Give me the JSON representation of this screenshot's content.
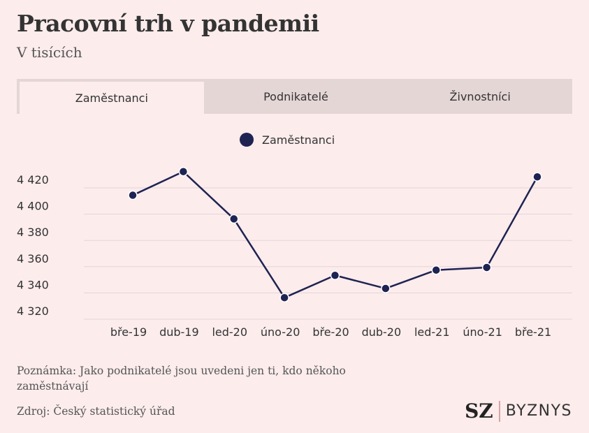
{
  "title": "Pracovní trh v pandemii",
  "subtitle": "V tisících",
  "tabs": [
    {
      "label": "Zaměstnanci",
      "active": true
    },
    {
      "label": "Podnikatelé",
      "active": false
    },
    {
      "label": "Živnostníci",
      "active": false
    }
  ],
  "note": "Poznámka: Jako podnikatelé jsou uvedeni jen ti, kdo někoho zaměstnávají",
  "source": "Zdroj: Český statistický úřad",
  "logo": {
    "sz": "SZ",
    "byznys": "BYZNYS"
  },
  "colors": {
    "series": "#1e2352",
    "background": "#fcecec",
    "tab_bar": "#e5d6d6",
    "grid": "#e3d4d8"
  },
  "chart_data": {
    "type": "line",
    "legend": "top-center",
    "grid": true,
    "categories": [
      "bře-19",
      "dub-19",
      "led-20",
      "úno-20",
      "bře-20",
      "dub-20",
      "led-21",
      "úno-21",
      "bře-21"
    ],
    "series": [
      {
        "name": "Zaměstnanci",
        "values": [
          4408,
          4426,
          4390,
          4330,
          4347,
          4337,
          4351,
          4353,
          4422
        ]
      }
    ],
    "yticks": [
      4320,
      4340,
      4360,
      4380,
      4400,
      4420
    ],
    "ytick_labels": [
      "4 320",
      "4 340",
      "4 360",
      "4 380",
      "4 400",
      "4 420"
    ],
    "ylim": [
      4315,
      4425
    ]
  }
}
